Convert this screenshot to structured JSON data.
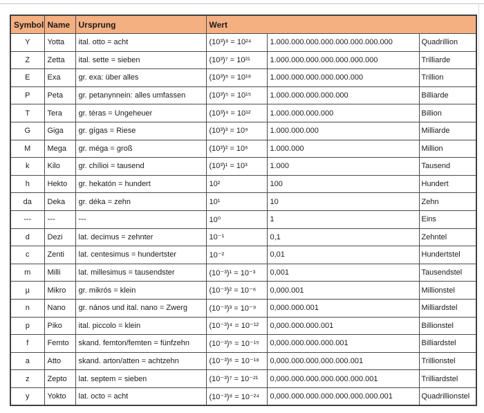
{
  "colors": {
    "header_bg": "#f5b082",
    "grid_border": "#4a4a4a",
    "page_bg": "#ffffff"
  },
  "table": {
    "headers": {
      "symbol": "Symbol",
      "name": "Name",
      "ursprung": "Ursprung",
      "wert": "Wert"
    },
    "rows": [
      {
        "symbol": "Y",
        "name": "Yotta",
        "ursprung": "ital. otto = acht",
        "power": "(10³)⁸ = 10²⁴",
        "value": "1.000.000.000.000.000.000.000.000",
        "word": "Quadrillion"
      },
      {
        "symbol": "Z",
        "name": "Zetta",
        "ursprung": "ital. sette = sieben",
        "power": "(10³)⁷ = 10²¹",
        "value": "1.000.000.000.000.000.000.000",
        "word": "Trilliarde"
      },
      {
        "symbol": "E",
        "name": "Exa",
        "ursprung": "gr. exa: über alles",
        "power": "(10³)⁶ = 10¹⁸",
        "value": "1.000.000.000.000.000.000",
        "word": "Trillion"
      },
      {
        "symbol": "P",
        "name": "Peta",
        "ursprung": "gr. petanynnein: alles umfassen",
        "power": "(10³)⁵ = 10¹⁵",
        "value": "1.000.000.000.000.000",
        "word": "Billiarde"
      },
      {
        "symbol": "T",
        "name": "Tera",
        "ursprung": "gr. téras = Ungeheuer",
        "power": "(10³)⁴ = 10¹²",
        "value": "1.000.000.000.000",
        "word": "Billion"
      },
      {
        "symbol": "G",
        "name": "Giga",
        "ursprung": "gr. gígas = Riese",
        "power": "(10³)³ = 10⁹",
        "value": "1.000.000.000",
        "word": "Milliarde"
      },
      {
        "symbol": "M",
        "name": "Mega",
        "ursprung": "gr. méga = groß",
        "power": "(10³)² = 10⁶",
        "value": "1.000.000",
        "word": "Million"
      },
      {
        "symbol": "k",
        "name": "Kilo",
        "ursprung": "gr. chílioi = tausend",
        "power": "(10³)¹ = 10³",
        "value": "1.000",
        "word": "Tausend"
      },
      {
        "symbol": "h",
        "name": "Hekto",
        "ursprung": "gr. hekatón = hundert",
        "power": "10²",
        "value": "100",
        "word": "Hundert"
      },
      {
        "symbol": "da",
        "name": "Deka",
        "ursprung": "gr. déka = zehn",
        "power": "10¹",
        "value": "10",
        "word": "Zehn"
      },
      {
        "symbol": "---",
        "name": "---",
        "ursprung": "---",
        "power": "10⁰",
        "value": "1",
        "word": "Eins"
      },
      {
        "symbol": "d",
        "name": "Dezi",
        "ursprung": "lat. decimus = zehnter",
        "power": "10⁻¹",
        "value": "0,1",
        "word": "Zehntel"
      },
      {
        "symbol": "c",
        "name": "Zenti",
        "ursprung": "lat. centesimus = hundertster",
        "power": "10⁻²",
        "value": "0,01",
        "word": "Hundertstel"
      },
      {
        "symbol": "m",
        "name": "Milli",
        "ursprung": "lat. millesimus = tausendster",
        "power": "(10⁻³)¹ = 10⁻³",
        "value": "0,001",
        "word": "Tausendstel"
      },
      {
        "symbol": "µ",
        "name": "Mikro",
        "ursprung": "gr. mikrós = klein",
        "power": "(10⁻³)² = 10⁻⁶",
        "value": "0,000.001",
        "word": "Millionstel"
      },
      {
        "symbol": "n",
        "name": "Nano",
        "ursprung": "gr. nános und ital. nano = Zwerg",
        "power": "(10⁻³)³ = 10⁻⁹",
        "value": "0,000.000.001",
        "word": "Milliardstel"
      },
      {
        "symbol": "p",
        "name": "Piko",
        "ursprung": "ital. piccolo = klein",
        "power": "(10⁻³)⁴ = 10⁻¹²",
        "value": "0,000.000.000.001",
        "word": "Billionstel"
      },
      {
        "symbol": "f",
        "name": "Femto",
        "ursprung": "skand. femton/femten = fünfzehn",
        "power": "(10⁻³)⁵ = 10⁻¹⁵",
        "value": "0,000.000.000.000.001",
        "word": "Billiardstel"
      },
      {
        "symbol": "a",
        "name": "Atto",
        "ursprung": "skand. arton/atten = achtzehn",
        "power": "(10⁻³)⁶ = 10⁻¹⁸",
        "value": "0,000.000.000.000.000.001",
        "word": "Trillionstel"
      },
      {
        "symbol": "z",
        "name": "Zepto",
        "ursprung": "lat. septem = sieben",
        "power": "(10⁻³)⁷ = 10⁻²¹",
        "value": "0,000.000.000.000.000.000.001",
        "word": "Trilliardstel"
      },
      {
        "symbol": "y",
        "name": "Yokto",
        "ursprung": "lat. octo = acht",
        "power": "(10⁻³)⁸ = 10⁻²⁴",
        "value": "0,000.000.000.000.000.000.000.001",
        "word": "Quadrillionstel"
      }
    ]
  }
}
